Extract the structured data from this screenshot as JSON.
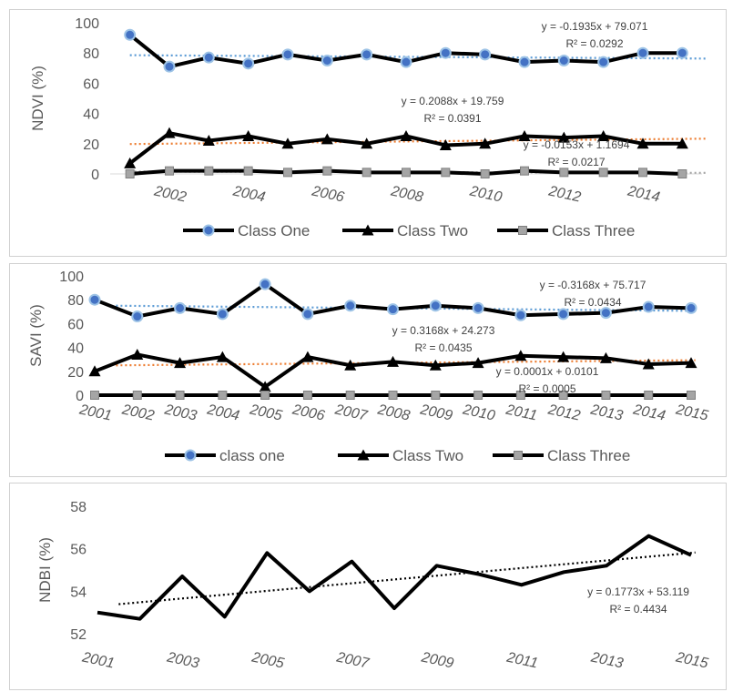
{
  "chart_data": [
    {
      "type": "line",
      "ylabel": "NDVI (%)",
      "ylim": [
        0,
        100
      ],
      "yticks": [
        "0",
        "20",
        "40",
        "60",
        "80",
        "100"
      ],
      "x": [
        2001,
        2002,
        2003,
        2004,
        2005,
        2006,
        2007,
        2008,
        2009,
        2010,
        2011,
        2012,
        2013,
        2014,
        2015
      ],
      "xticks": [
        "2002",
        "2004",
        "2006",
        "2008",
        "2010",
        "2012",
        "2014"
      ],
      "series": [
        {
          "name": "Class One",
          "marker": "circle",
          "values": [
            92,
            71,
            77,
            73,
            79,
            75,
            79,
            74,
            80,
            79,
            74,
            75,
            74,
            80,
            80
          ]
        },
        {
          "name": "Class Two",
          "marker": "triangle",
          "values": [
            7,
            27,
            22,
            25,
            20,
            23,
            20,
            25,
            19,
            20,
            25,
            24,
            25,
            20,
            20
          ]
        },
        {
          "name": "Class Three",
          "marker": "square",
          "values": [
            0,
            2,
            2,
            2,
            1,
            2,
            1,
            1,
            1,
            0,
            2,
            1,
            1,
            1,
            0
          ]
        }
      ],
      "trendlines": [
        {
          "equation": "y = -0.1935x + 79.071",
          "r2": "R² = 0.0292",
          "color": "#5b9bd5"
        },
        {
          "equation": "y = 0.2088x + 19.759",
          "r2": "R² = 0.0391",
          "color": "#ed7d31"
        },
        {
          "equation": "y = -0.0153x + 1.1694",
          "r2": "R² = 0.0217",
          "color": "#a5a5a5"
        }
      ],
      "legend_position": "bottom"
    },
    {
      "type": "line",
      "ylabel": "SAVI (%)",
      "ylim": [
        0,
        100
      ],
      "yticks": [
        "0",
        "20",
        "40",
        "60",
        "80",
        "100"
      ],
      "x": [
        2001,
        2002,
        2003,
        2004,
        2005,
        2006,
        2007,
        2008,
        2009,
        2010,
        2011,
        2012,
        2013,
        2014,
        2015
      ],
      "xticks": [
        "2001",
        "2002",
        "2003",
        "2004",
        "2005",
        "2006",
        "2007",
        "2008",
        "2009",
        "2010",
        "2011",
        "2012",
        "2013",
        "2014",
        "2015"
      ],
      "series": [
        {
          "name": "class one",
          "marker": "circle",
          "values": [
            80,
            66,
            73,
            68,
            93,
            68,
            75,
            72,
            75,
            73,
            67,
            68,
            69,
            74,
            73
          ]
        },
        {
          "name": "Class Two",
          "marker": "triangle",
          "values": [
            20,
            34,
            27,
            32,
            7,
            32,
            25,
            28,
            25,
            27,
            33,
            32,
            31,
            26,
            27
          ]
        },
        {
          "name": "Class Three",
          "marker": "square",
          "values": [
            0,
            0,
            0,
            0,
            0,
            0,
            0,
            0,
            0,
            0,
            0,
            0,
            0,
            0,
            0
          ]
        }
      ],
      "trendlines": [
        {
          "equation": "y = -0.3168x + 75.717",
          "r2": "R² = 0.0434",
          "color": "#5b9bd5"
        },
        {
          "equation": "y = 0.3168x + 24.273",
          "r2": "R² = 0.0435",
          "color": "#ed7d31"
        },
        {
          "equation": "y = 0.0001x + 0.0101",
          "r2": "R² = 0.0005",
          "color": "#000000"
        }
      ],
      "legend_position": "bottom"
    },
    {
      "type": "line",
      "ylabel": "NDBI (%)",
      "ylim": [
        52,
        58
      ],
      "yticks": [
        "52",
        "54",
        "56",
        "58"
      ],
      "x": [
        2001,
        2002,
        2003,
        2004,
        2005,
        2006,
        2007,
        2008,
        2009,
        2010,
        2011,
        2012,
        2013,
        2014,
        2015
      ],
      "xticks": [
        "2001",
        "2003",
        "2005",
        "2007",
        "2009",
        "2011",
        "2013",
        "2015"
      ],
      "series": [
        {
          "values": [
            53.0,
            52.7,
            54.7,
            52.8,
            55.8,
            54.0,
            55.4,
            53.2,
            55.2,
            54.8,
            54.3,
            54.9,
            55.2,
            56.6,
            55.7
          ]
        }
      ],
      "trendlines": [
        {
          "equation": "y = 0.1773x + 53.119",
          "r2": "R² = 0.4434",
          "color": "#000000"
        }
      ],
      "legend_position": "none"
    }
  ]
}
